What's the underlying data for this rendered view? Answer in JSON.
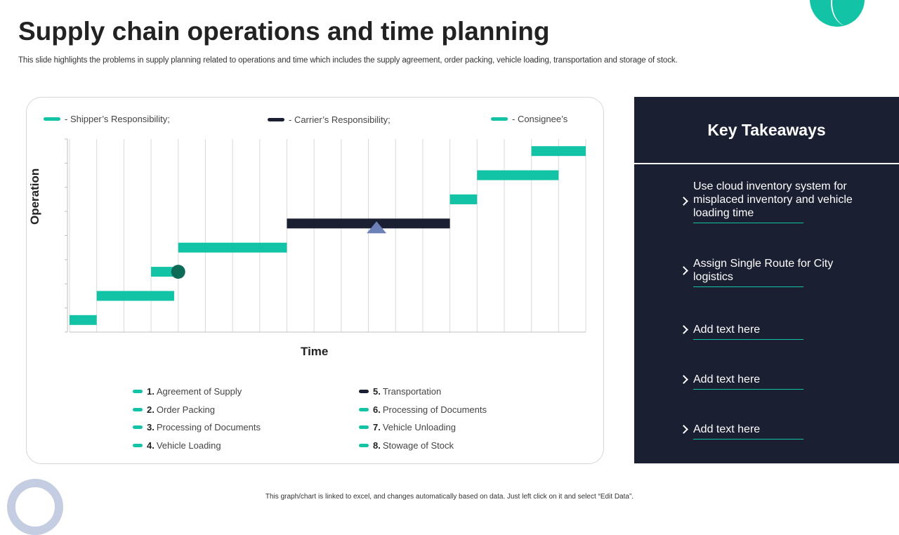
{
  "page": {
    "title": "Supply chain operations and time planning",
    "subtitle": "This slide highlights the problems in supply planning related to operations and time which includes the supply agreement, order packing, vehicle loading, transportation and storage of stock.",
    "footnote": "This graph/chart is linked to excel, and changes automatically based on data. Just left click on it and select “Edit Data”."
  },
  "colors": {
    "shipper": "#13c3a5",
    "carrier": "#1b1f32",
    "consignee": "#13c3a5",
    "panel": "#1b1f32",
    "marker_circle": "#0b6b57",
    "marker_triangle": "#6a80b7"
  },
  "chart_data": {
    "type": "bar",
    "subtype": "gantt",
    "xlabel": "Time",
    "ylabel": "Operation",
    "x_range": [
      0,
      19
    ],
    "y_range": [
      0,
      8
    ],
    "grid": true,
    "legend_top": [
      {
        "label": "- Shipper’s Responsibility;",
        "role": "shipper"
      },
      {
        "label": "- Carrier’s Responsibility;",
        "role": "carrier"
      },
      {
        "label": "- Consignee’s",
        "role": "consignee"
      }
    ],
    "series": [
      {
        "num": "1.",
        "name": "Agreement of Supply",
        "role": "shipper",
        "start": 0,
        "end": 1,
        "row": 0.5
      },
      {
        "num": "2.",
        "name": "Order Packing",
        "role": "shipper",
        "start": 1,
        "end": 3.85,
        "row": 1.5
      },
      {
        "num": "3.",
        "name": "Processing of Documents",
        "role": "shipper",
        "start": 3,
        "end": 4,
        "row": 2.5
      },
      {
        "num": "4.",
        "name": "Vehicle Loading",
        "role": "shipper",
        "start": 4,
        "end": 8,
        "row": 3.5
      },
      {
        "num": "5.",
        "name": "Transportation",
        "role": "carrier",
        "start": 8,
        "end": 14,
        "row": 4.5
      },
      {
        "num": "6.",
        "name": "Processing of Documents",
        "role": "consignee",
        "start": 14,
        "end": 15,
        "row": 5.5
      },
      {
        "num": "7.",
        "name": "Vehicle Unloading",
        "role": "consignee",
        "start": 15,
        "end": 18,
        "row": 6.5
      },
      {
        "num": "8.",
        "name": "Stowage of Stock",
        "role": "consignee",
        "start": 17,
        "end": 19,
        "row": 7.5
      }
    ],
    "markers": [
      {
        "shape": "circle",
        "x": 4,
        "row": 2.5
      },
      {
        "shape": "triangle",
        "x": 11.3,
        "row": 4.3
      }
    ]
  },
  "takeaways": {
    "title": "Key Takeaways",
    "items": [
      "Use cloud inventory system for misplaced inventory and vehicle loading time",
      "Assign Single Route for City logistics",
      "Add text here",
      "Add text here",
      "Add text here"
    ]
  }
}
